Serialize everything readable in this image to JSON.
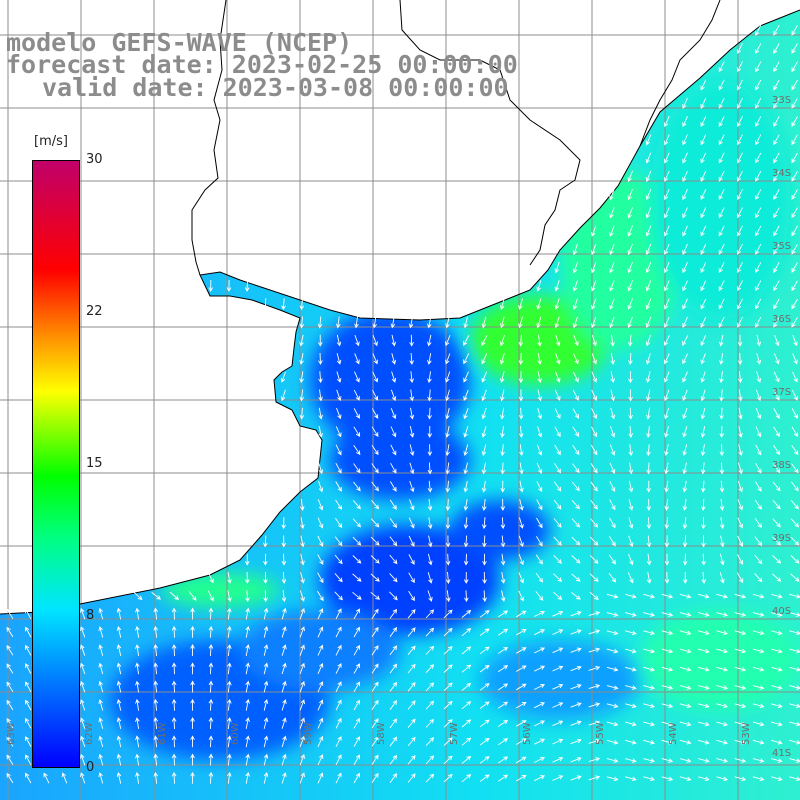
{
  "title": {
    "line1": "modelo GEFS-WAVE (NCEP)",
    "line2": "forecast date: 2023-02-25 00:00:00",
    "line3": "valid date: 2023-03-08 00:00:00"
  },
  "colorbar": {
    "unit": "[m/s]",
    "ticks": [
      "30",
      "22",
      "15",
      "8",
      "0"
    ],
    "colors": [
      "#0000ff",
      "#0070ff",
      "#00e5ff",
      "#00ff7f",
      "#00ff00",
      "#ffff00",
      "#ff9000",
      "#ff0000",
      "#c0006a"
    ]
  },
  "lat_labels": [
    "33S",
    "34S",
    "35S",
    "36S",
    "37S",
    "38S",
    "39S",
    "40S",
    "41S"
  ],
  "lon_labels": [
    "63W",
    "62W",
    "61W",
    "60W",
    "59W",
    "58W",
    "57W",
    "56W",
    "55W",
    "54W",
    "53W"
  ],
  "map": {
    "ocean_color": "#1ec8ff",
    "land_color": "#ffffff",
    "grid_color": "#8c8c8c",
    "coast_color": "#000000",
    "arrow_color": "#ffffff"
  }
}
